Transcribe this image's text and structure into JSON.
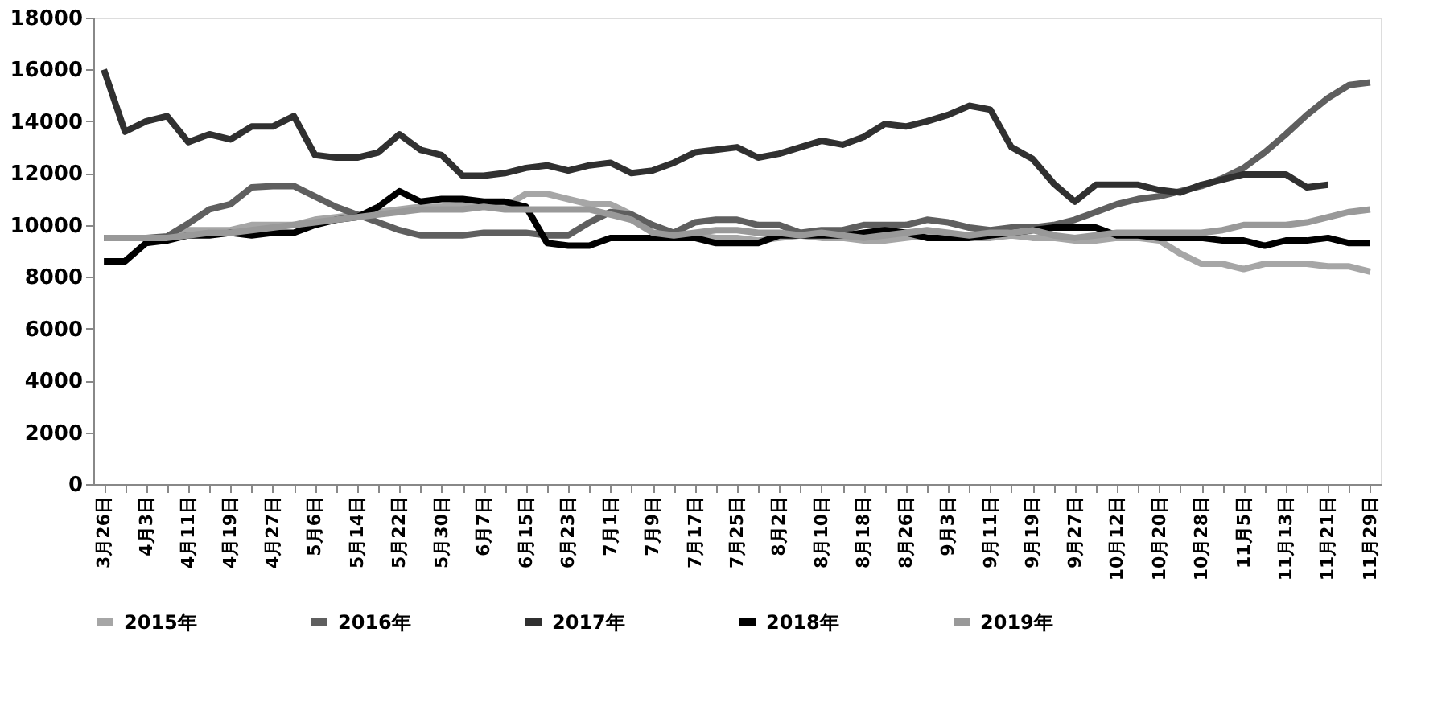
{
  "chart_data": {
    "type": "line",
    "categories": [
      "3月26日",
      null,
      "4月3日",
      null,
      "4月11日",
      null,
      "4月19日",
      null,
      "4月27日",
      null,
      "5月6日",
      null,
      "5月14日",
      null,
      "5月22日",
      null,
      "5月30日",
      null,
      "6月7日",
      null,
      "6月15日",
      null,
      "6月23日",
      null,
      "7月1日",
      null,
      "7月9日",
      null,
      "7月17日",
      null,
      "7月25日",
      null,
      "8月2日",
      null,
      "8月10日",
      null,
      "8月18日",
      null,
      "8月26日",
      null,
      "9月3日",
      null,
      "9月11日",
      null,
      "9月19日",
      null,
      "9月27日",
      null,
      "10月12日",
      null,
      "10月20日",
      null,
      "10月28日",
      null,
      "11月5日",
      null,
      "11月13日",
      null,
      "11月21日",
      null,
      "11月29日"
    ],
    "series": [
      {
        "name": "2015年",
        "color": "#a6a6a6",
        "values": [
          9500,
          9500,
          9500,
          9500,
          9800,
          9800,
          9800,
          10000,
          10000,
          10000,
          10200,
          10300,
          10400,
          10500,
          10600,
          10700,
          10700,
          10800,
          10800,
          10700,
          11200,
          11200,
          11000,
          10800,
          10800,
          10400,
          9700,
          9600,
          9600,
          9500,
          9500,
          9400,
          9500,
          9600,
          9500,
          9500,
          9400,
          9400,
          9500,
          9600,
          9500,
          9500,
          9500,
          9600,
          9500,
          9500,
          9400,
          9400,
          9500,
          9500,
          9400,
          8900,
          8500,
          8500,
          8300,
          8500,
          8500,
          8500,
          8400,
          8400,
          8200
        ]
      },
      {
        "name": "2016年",
        "color": "#5f5f5f",
        "values": [
          9500,
          9500,
          9500,
          9560,
          10060,
          10600,
          10800,
          11450,
          11500,
          11500,
          11100,
          10700,
          10400,
          10100,
          9800,
          9600,
          9600,
          9600,
          9700,
          9700,
          9700,
          9600,
          9600,
          10100,
          10500,
          10400,
          10000,
          9700,
          10100,
          10200,
          10200,
          10000,
          10000,
          9700,
          9800,
          9800,
          10000,
          10000,
          10000,
          10200,
          10100,
          9900,
          9800,
          9900,
          9900,
          10000,
          10200,
          10500,
          10800,
          11000,
          11100,
          11300,
          11500,
          11800,
          12200,
          12800,
          13500,
          14250,
          14900,
          15400,
          15500
        ]
      },
      {
        "name": "2017年",
        "color": "#303030",
        "values": [
          16000,
          13600,
          14000,
          14200,
          13200,
          13500,
          13300,
          13800,
          13800,
          14200,
          12700,
          12600,
          12600,
          12800,
          13500,
          12900,
          12700,
          11900,
          11900,
          12000,
          12200,
          12300,
          12100,
          12300,
          12400,
          12000,
          12100,
          12400,
          12800,
          12900,
          13000,
          12600,
          12750,
          13000,
          13250,
          13100,
          13400,
          13900,
          13800,
          14000,
          14250,
          14600,
          14450,
          13000,
          12550,
          11600,
          10900,
          11550,
          11550,
          11550,
          11350,
          11250,
          11550,
          11750,
          11950,
          11950,
          11950,
          11450,
          11550,
          null,
          null
        ]
      },
      {
        "name": "2018年",
        "color": "#000000",
        "values": [
          8600,
          8600,
          9300,
          9400,
          9600,
          9600,
          9700,
          9600,
          9700,
          9700,
          10000,
          10200,
          10300,
          10700,
          11300,
          10900,
          11000,
          11000,
          10900,
          10900,
          10700,
          9300,
          9200,
          9200,
          9500,
          9500,
          9500,
          9500,
          9500,
          9300,
          9300,
          9300,
          9600,
          9600,
          9600,
          9600,
          9700,
          9800,
          9700,
          9500,
          9500,
          9500,
          9600,
          9700,
          9800,
          9900,
          9900,
          9900,
          9600,
          9600,
          9500,
          9500,
          9500,
          9400,
          9400,
          9200,
          9400,
          9400,
          9500,
          9300,
          9300
        ]
      },
      {
        "name": "2019年",
        "color": "#999999",
        "values": [
          9500,
          9500,
          9500,
          9500,
          9600,
          9700,
          9700,
          9800,
          9900,
          10000,
          10100,
          10200,
          10300,
          10400,
          10500,
          10600,
          10600,
          10600,
          10700,
          10600,
          10600,
          10600,
          10600,
          10600,
          10400,
          10200,
          9700,
          9600,
          9700,
          9800,
          9800,
          9700,
          9700,
          9600,
          9700,
          9600,
          9500,
          9600,
          9700,
          9800,
          9700,
          9600,
          9700,
          9700,
          9800,
          9600,
          9500,
          9600,
          9700,
          9700,
          9700,
          9700,
          9700,
          9800,
          10000,
          10000,
          10000,
          10100,
          10300,
          10500,
          10600
        ]
      }
    ],
    "ylim": [
      0,
      18000
    ],
    "yticks": [
      0,
      2000,
      4000,
      6000,
      8000,
      10000,
      12000,
      14000,
      16000,
      18000
    ],
    "grid": false,
    "legend": "bottom",
    "marker": "none",
    "line_style": "solid"
  }
}
